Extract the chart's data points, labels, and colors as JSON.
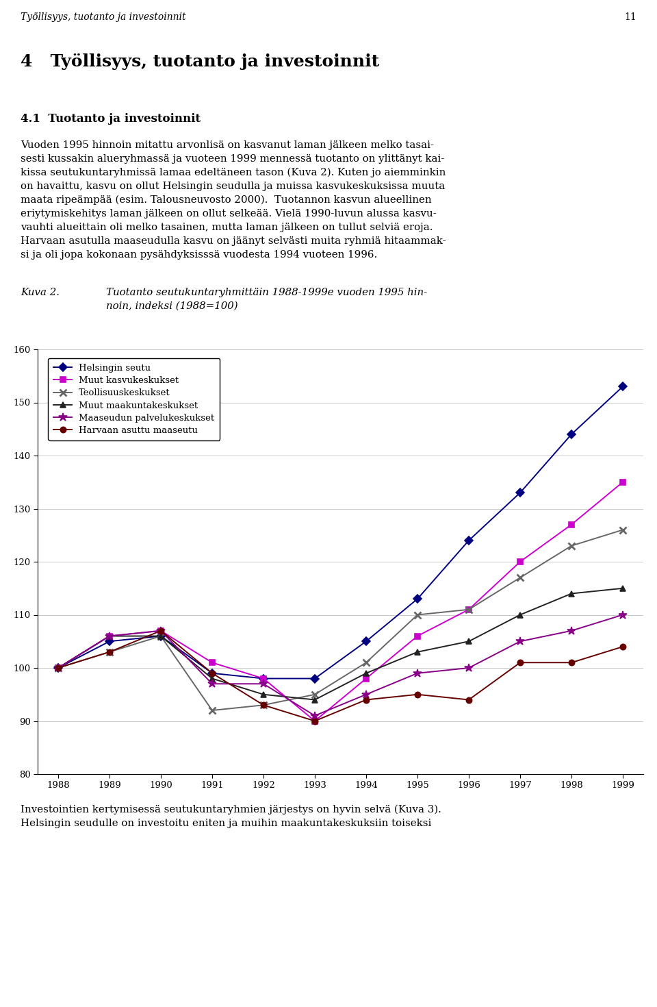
{
  "years": [
    1988,
    1989,
    1990,
    1991,
    1992,
    1993,
    1994,
    1995,
    1996,
    1997,
    1998,
    1999
  ],
  "series": {
    "Helsingin seutu": [
      100,
      105,
      106,
      99,
      98,
      98,
      105,
      113,
      124,
      133,
      144,
      153
    ],
    "Muut kasvukeskukset": [
      100,
      106,
      107,
      101,
      98,
      90,
      98,
      106,
      111,
      120,
      127,
      135
    ],
    "Teollisuuskeskukset": [
      100,
      103,
      106,
      92,
      93,
      95,
      101,
      110,
      111,
      117,
      123,
      126
    ],
    "Muut maakuntakeskukset": [
      100,
      106,
      106,
      98,
      95,
      94,
      99,
      103,
      105,
      110,
      114,
      115
    ],
    "Maaseudun palvelukeskukset": [
      100,
      106,
      107,
      97,
      97,
      91,
      95,
      99,
      100,
      105,
      107,
      110
    ],
    "Harvaan asuttu maaseutu": [
      100,
      103,
      107,
      99,
      93,
      90,
      94,
      95,
      94,
      101,
      101,
      104
    ]
  },
  "colors": {
    "Helsingin seutu": "#000080",
    "Muut kasvukeskukset": "#CC00CC",
    "Teollisuuskeskukset": "#666666",
    "Muut maakuntakeskukset": "#222222",
    "Maaseudun palvelukeskukset": "#880088",
    "Harvaan asuttu maaseutu": "#660000"
  },
  "markers": {
    "Helsingin seutu": "D",
    "Muut kasvukeskukset": "s",
    "Teollisuuskeskukset": "x",
    "Muut maakuntakeskukset": "^",
    "Maaseudun palvelukeskukset": "*",
    "Harvaan asuttu maaseutu": "o"
  },
  "ylim": [
    80,
    160
  ],
  "yticks": [
    80,
    90,
    100,
    110,
    120,
    130,
    140,
    150,
    160
  ],
  "page_header": "Työllisyys, tuotanto ja investoinnit",
  "page_number": "11",
  "chapter_title": "4   Työllisyys, tuotanto ja investoinnit",
  "section_title": "4.1  Tuotanto ja investoinnit",
  "body_lines": [
    "Vuoden 1995 hinnoin mitattu arvonlisä on kasvanut laman jälkeen melko tasai-",
    "sesti kussakin alueryhmassä ja vuoteen 1999 mennessä tuotanto on ylittänyt kai-",
    "kissa seutukuntaryhmissä lamaa edeltäneen tason (Kuva 2). Kuten jo aiemminkin",
    "on havaittu, kasvu on ollut Helsingin seudulla ja muissa kasvukeskuksissa muuta",
    "maata ripeämpää (esim. Talousneuvosto 2000).  Tuotannon kasvun alueellinen",
    "eriytymiskehitys laman jälkeen on ollut selkeää. Vielä 1990-luvun alussa kasvu-",
    "vauhti alueittain oli melko tasainen, mutta laman jälkeen on tullut selviä eroja.",
    "Harvaan asutulla maaseudulla kasvu on jäänyt selvästi muita ryhmiä hitaammak-",
    "si ja oli jopa kokonaan pysähdyksisssä vuodesta 1994 vuoteen 1996."
  ],
  "kuva_label": "Kuva 2.",
  "kuva_caption_line1": "Tuotanto seutukuntaryhmittäin 1988-1999e vuoden 1995 hin-",
  "kuva_caption_line2": "noin, indeksi (1988=100)",
  "footer_lines": [
    "Investointien kertymisessä seutukuntaryhmien järjestys on hyvin selvä (Kuva 3).",
    "Helsingin seudulle on investoitu eniten ja muihin maakuntakeskuksiin toiseksi"
  ]
}
